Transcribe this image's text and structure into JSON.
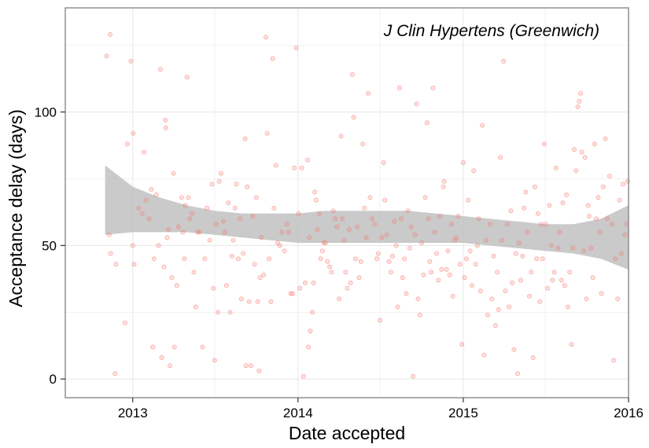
{
  "chart_data": {
    "type": "scatter",
    "title": "J Clin Hypertens (Greenwich)",
    "xlabel": "Date accepted",
    "ylabel": "Acceptance delay (days)",
    "xlim": [
      "2012-08-05",
      "2016-01-01"
    ],
    "ylim": [
      -7,
      139
    ],
    "x_ticks": [
      "2013",
      "2014",
      "2015",
      "2016"
    ],
    "x_tick_dates": [
      "2013-01-01",
      "2014-01-01",
      "2015-01-01",
      "2016-01-01"
    ],
    "y_ticks": [
      0,
      50,
      100
    ],
    "grid": true,
    "colors": {
      "points": "#f8766d",
      "band": "#bdbdbd",
      "grid": "#ebebeb",
      "frame": "#7f7f7f"
    },
    "points": [
      [
        "2012-11-04",
        121
      ],
      [
        "2012-11-12",
        129
      ],
      [
        "2012-11-10",
        54
      ],
      [
        "2012-11-13",
        47
      ],
      [
        "2012-11-25",
        43
      ],
      [
        "2012-11-23",
        2
      ],
      [
        "2012-12-15",
        21
      ],
      [
        "2012-12-20",
        88
      ],
      [
        "2012-12-28",
        119
      ],
      [
        "2013-01-02",
        92
      ],
      [
        "2013-01-01",
        50
      ],
      [
        "2013-01-04",
        43
      ],
      [
        "2013-01-14",
        64
      ],
      [
        "2013-01-22",
        62
      ],
      [
        "2013-01-26",
        85
      ],
      [
        "2013-01-30",
        67
      ],
      [
        "2013-02-06",
        60
      ],
      [
        "2013-02-11",
        71
      ],
      [
        "2013-02-14",
        12
      ],
      [
        "2013-02-17",
        45
      ],
      [
        "2013-02-22",
        69
      ],
      [
        "2013-02-27",
        50
      ],
      [
        "2013-03-03",
        116
      ],
      [
        "2013-03-06",
        8
      ],
      [
        "2013-03-11",
        42
      ],
      [
        "2013-03-14",
        97
      ],
      [
        "2013-03-15",
        94
      ],
      [
        "2013-03-18",
        53
      ],
      [
        "2013-03-21",
        56
      ],
      [
        "2013-03-24",
        5
      ],
      [
        "2013-03-28",
        38
      ],
      [
        "2013-04-01",
        77
      ],
      [
        "2013-04-03",
        12
      ],
      [
        "2013-04-08",
        35
      ],
      [
        "2013-04-12",
        57
      ],
      [
        "2013-04-19",
        68
      ],
      [
        "2013-04-22",
        55
      ],
      [
        "2013-04-25",
        45
      ],
      [
        "2013-04-27",
        65
      ],
      [
        "2013-05-01",
        113
      ],
      [
        "2013-05-04",
        68
      ],
      [
        "2013-05-07",
        60
      ],
      [
        "2013-05-12",
        62
      ],
      [
        "2013-05-16",
        40
      ],
      [
        "2013-05-20",
        27
      ],
      [
        "2013-05-24",
        55
      ],
      [
        "2013-05-28",
        55
      ],
      [
        "2013-06-04",
        12
      ],
      [
        "2013-06-09",
        45
      ],
      [
        "2013-06-14",
        64
      ],
      [
        "2013-06-20",
        52
      ],
      [
        "2013-06-25",
        73
      ],
      [
        "2013-06-28",
        34
      ],
      [
        "2013-07-01",
        7
      ],
      [
        "2013-07-04",
        58
      ],
      [
        "2013-07-08",
        25
      ],
      [
        "2013-07-11",
        74
      ],
      [
        "2013-07-15",
        77
      ],
      [
        "2013-07-20",
        59
      ],
      [
        "2013-07-23",
        55
      ],
      [
        "2013-07-27",
        35
      ],
      [
        "2013-07-31",
        66
      ],
      [
        "2013-08-04",
        25
      ],
      [
        "2013-08-08",
        46
      ],
      [
        "2013-08-11",
        52
      ],
      [
        "2013-08-15",
        64
      ],
      [
        "2013-08-18",
        73
      ],
      [
        "2013-08-22",
        45
      ],
      [
        "2013-08-26",
        60
      ],
      [
        "2013-08-29",
        30
      ],
      [
        "2013-09-02",
        47
      ],
      [
        "2013-09-06",
        90
      ],
      [
        "2013-09-08",
        5
      ],
      [
        "2013-09-11",
        72
      ],
      [
        "2013-09-15",
        29
      ],
      [
        "2013-09-19",
        5
      ],
      [
        "2013-09-23",
        61
      ],
      [
        "2013-09-27",
        43
      ],
      [
        "2013-10-01",
        68
      ],
      [
        "2013-10-04",
        29
      ],
      [
        "2013-10-07",
        3
      ],
      [
        "2013-10-09",
        38
      ],
      [
        "2013-10-12",
        53
      ],
      [
        "2013-10-17",
        39
      ],
      [
        "2013-10-22",
        128
      ],
      [
        "2013-10-25",
        92
      ],
      [
        "2013-10-29",
        45
      ],
      [
        "2013-11-02",
        29
      ],
      [
        "2013-11-06",
        120
      ],
      [
        "2013-11-09",
        64
      ],
      [
        "2013-11-13",
        80
      ],
      [
        "2013-11-17",
        51
      ],
      [
        "2013-11-22",
        50
      ],
      [
        "2013-11-26",
        55
      ],
      [
        "2013-12-02",
        48
      ],
      [
        "2013-12-07",
        58
      ],
      [
        "2013-12-11",
        55
      ],
      [
        "2013-12-16",
        32
      ],
      [
        "2013-12-20",
        32
      ],
      [
        "2013-12-24",
        79
      ],
      [
        "2013-12-28",
        124
      ],
      [
        "2014-01-02",
        62
      ],
      [
        "2014-01-05",
        34
      ],
      [
        "2014-01-09",
        79
      ],
      [
        "2014-01-13",
        1
      ],
      [
        "2014-01-17",
        36
      ],
      [
        "2014-01-22",
        82
      ],
      [
        "2014-01-24",
        12
      ],
      [
        "2014-01-26",
        53
      ],
      [
        "2014-01-28",
        18
      ],
      [
        "2014-02-02",
        25
      ],
      [
        "2014-02-04",
        36
      ],
      [
        "2014-02-07",
        70
      ],
      [
        "2014-02-10",
        67
      ],
      [
        "2014-02-13",
        56
      ],
      [
        "2014-02-17",
        62
      ],
      [
        "2014-02-20",
        45
      ],
      [
        "2014-02-24",
        48
      ],
      [
        "2014-02-27",
        51
      ],
      [
        "2014-03-03",
        51
      ],
      [
        "2014-03-07",
        44
      ],
      [
        "2014-03-12",
        42
      ],
      [
        "2014-03-16",
        40
      ],
      [
        "2014-03-20",
        63
      ],
      [
        "2014-03-24",
        60
      ],
      [
        "2014-03-28",
        57
      ],
      [
        "2014-04-02",
        30
      ],
      [
        "2014-04-06",
        91
      ],
      [
        "2014-04-09",
        60
      ],
      [
        "2014-04-13",
        52
      ],
      [
        "2014-04-16",
        40
      ],
      [
        "2014-04-20",
        34
      ],
      [
        "2014-04-24",
        56
      ],
      [
        "2014-04-27",
        36
      ],
      [
        "2014-05-01",
        114
      ],
      [
        "2014-05-04",
        98
      ],
      [
        "2014-05-08",
        45
      ],
      [
        "2014-05-12",
        57
      ],
      [
        "2014-05-16",
        38
      ],
      [
        "2014-05-20",
        44
      ],
      [
        "2014-05-24",
        88
      ],
      [
        "2014-05-28",
        64
      ],
      [
        "2014-06-01",
        53
      ],
      [
        "2014-06-05",
        107
      ],
      [
        "2014-06-09",
        68
      ],
      [
        "2014-06-14",
        60
      ],
      [
        "2014-06-19",
        58
      ],
      [
        "2014-06-24",
        45
      ],
      [
        "2014-06-27",
        47
      ],
      [
        "2014-07-01",
        22
      ],
      [
        "2014-07-05",
        53
      ],
      [
        "2014-07-09",
        81
      ],
      [
        "2014-07-12",
        67
      ],
      [
        "2014-07-16",
        54
      ],
      [
        "2014-07-21",
        44
      ],
      [
        "2014-07-25",
        40
      ],
      [
        "2014-07-29",
        46
      ],
      [
        "2014-08-02",
        59
      ],
      [
        "2014-08-06",
        50
      ],
      [
        "2014-08-09",
        27
      ],
      [
        "2014-08-13",
        109
      ],
      [
        "2014-08-17",
        60
      ],
      [
        "2014-08-20",
        38
      ],
      [
        "2014-08-24",
        45
      ],
      [
        "2014-08-28",
        32
      ],
      [
        "2014-09-01",
        63
      ],
      [
        "2014-09-05",
        49
      ],
      [
        "2014-09-08",
        57
      ],
      [
        "2014-09-12",
        1
      ],
      [
        "2014-09-16",
        54
      ],
      [
        "2014-09-20",
        103
      ],
      [
        "2014-09-23",
        30
      ],
      [
        "2014-09-27",
        24
      ],
      [
        "2014-10-01",
        51
      ],
      [
        "2014-10-05",
        39
      ],
      [
        "2014-10-09",
        68
      ],
      [
        "2014-10-13",
        96
      ],
      [
        "2014-10-16",
        60
      ],
      [
        "2014-10-19",
        44
      ],
      [
        "2014-10-22",
        40
      ],
      [
        "2014-10-26",
        109
      ],
      [
        "2014-10-30",
        55
      ],
      [
        "2014-11-03",
        47
      ],
      [
        "2014-11-07",
        37
      ],
      [
        "2014-11-10",
        61
      ],
      [
        "2014-11-14",
        41
      ],
      [
        "2014-11-18",
        72
      ],
      [
        "2014-11-20",
        74
      ],
      [
        "2014-11-25",
        41
      ],
      [
        "2014-11-28",
        48
      ],
      [
        "2014-12-02",
        39
      ],
      [
        "2014-12-06",
        58
      ],
      [
        "2014-12-09",
        31
      ],
      [
        "2014-12-13",
        52
      ],
      [
        "2014-12-17",
        53
      ],
      [
        "2014-12-21",
        61
      ],
      [
        "2014-12-25",
        43
      ],
      [
        "2014-12-29",
        13
      ],
      [
        "2015-01-01",
        81
      ],
      [
        "2015-01-04",
        38
      ],
      [
        "2015-01-08",
        45
      ],
      [
        "2015-01-12",
        67
      ],
      [
        "2015-01-16",
        48
      ],
      [
        "2015-01-20",
        35
      ],
      [
        "2015-01-24",
        78
      ],
      [
        "2015-01-28",
        43
      ],
      [
        "2015-02-01",
        50
      ],
      [
        "2015-02-04",
        60
      ],
      [
        "2015-02-08",
        33
      ],
      [
        "2015-02-12",
        95
      ],
      [
        "2015-02-16",
        9
      ],
      [
        "2015-02-20",
        52
      ],
      [
        "2015-02-24",
        24
      ],
      [
        "2015-03-01",
        58
      ],
      [
        "2015-03-05",
        30
      ],
      [
        "2015-03-09",
        46
      ],
      [
        "2015-03-13",
        20
      ],
      [
        "2015-03-17",
        40
      ],
      [
        "2015-03-20",
        26
      ],
      [
        "2015-03-24",
        83
      ],
      [
        "2015-03-27",
        52
      ],
      [
        "2015-03-31",
        119
      ],
      [
        "2015-04-04",
        33
      ],
      [
        "2015-04-08",
        58
      ],
      [
        "2015-04-12",
        27
      ],
      [
        "2015-04-16",
        63
      ],
      [
        "2015-04-19",
        36
      ],
      [
        "2015-04-23",
        11
      ],
      [
        "2015-04-27",
        47
      ],
      [
        "2015-05-01",
        2
      ],
      [
        "2015-05-04",
        51
      ],
      [
        "2015-05-08",
        37
      ],
      [
        "2015-05-12",
        46
      ],
      [
        "2015-05-15",
        64
      ],
      [
        "2015-05-19",
        70
      ],
      [
        "2015-05-23",
        55
      ],
      [
        "2015-05-27",
        31
      ],
      [
        "2015-05-31",
        40
      ],
      [
        "2015-06-04",
        8
      ],
      [
        "2015-06-08",
        72
      ],
      [
        "2015-06-12",
        45
      ],
      [
        "2015-06-15",
        62
      ],
      [
        "2015-06-19",
        29
      ],
      [
        "2015-06-22",
        58
      ],
      [
        "2015-06-25",
        45
      ],
      [
        "2015-06-29",
        88
      ],
      [
        "2015-07-02",
        58
      ],
      [
        "2015-07-06",
        34
      ],
      [
        "2015-07-10",
        65
      ],
      [
        "2015-07-14",
        50
      ],
      [
        "2015-07-17",
        37
      ],
      [
        "2015-07-21",
        40
      ],
      [
        "2015-07-25",
        79
      ],
      [
        "2015-07-29",
        49
      ],
      [
        "2015-08-02",
        55
      ],
      [
        "2015-08-06",
        37
      ],
      [
        "2015-08-09",
        66
      ],
      [
        "2015-08-13",
        35
      ],
      [
        "2015-08-17",
        69
      ],
      [
        "2015-08-20",
        27
      ],
      [
        "2015-08-24",
        40
      ],
      [
        "2015-08-28",
        13
      ],
      [
        "2015-08-31",
        49
      ],
      [
        "2015-09-03",
        86
      ],
      [
        "2015-09-07",
        78
      ],
      [
        "2015-09-11",
        102
      ],
      [
        "2015-09-14",
        104
      ],
      [
        "2015-09-17",
        107
      ],
      [
        "2015-09-20",
        85
      ],
      [
        "2015-09-24",
        48
      ],
      [
        "2015-09-27",
        83
      ],
      [
        "2015-09-30",
        30
      ],
      [
        "2015-10-04",
        65
      ],
      [
        "2015-10-06",
        61
      ],
      [
        "2015-10-10",
        49
      ],
      [
        "2015-10-14",
        38
      ],
      [
        "2015-10-18",
        88
      ],
      [
        "2015-10-22",
        60
      ],
      [
        "2015-10-26",
        68
      ],
      [
        "2015-10-30",
        55
      ],
      [
        "2015-11-02",
        32
      ],
      [
        "2015-11-06",
        72
      ],
      [
        "2015-11-11",
        90
      ],
      [
        "2015-11-15",
        60
      ],
      [
        "2015-11-20",
        76
      ],
      [
        "2015-11-25",
        58
      ],
      [
        "2015-11-29",
        7
      ],
      [
        "2015-12-03",
        45
      ],
      [
        "2015-12-08",
        30
      ],
      [
        "2015-12-12",
        67
      ],
      [
        "2015-12-16",
        47
      ],
      [
        "2015-12-20",
        73
      ],
      [
        "2015-12-24",
        54
      ],
      [
        "2015-12-28",
        58
      ],
      [
        "2015-12-30",
        74
      ]
    ],
    "band": {
      "x": [
        "2012-11-01",
        "2013-01-01",
        "2013-03-01",
        "2013-05-01",
        "2013-07-01",
        "2013-09-01",
        "2013-11-01",
        "2014-01-01",
        "2014-03-01",
        "2014-05-01",
        "2014-07-01",
        "2014-09-01",
        "2014-11-01",
        "2015-01-01",
        "2015-03-01",
        "2015-05-01",
        "2015-07-01",
        "2015-09-01",
        "2015-11-01",
        "2015-12-31"
      ],
      "upper": [
        80,
        72,
        68,
        65,
        63,
        62,
        62,
        62,
        63,
        63,
        63,
        63,
        62,
        61,
        60,
        59,
        58,
        58,
        60,
        65
      ],
      "lower": [
        54,
        55,
        55,
        55,
        54,
        53,
        52,
        51,
        51,
        51,
        51,
        51,
        51,
        51,
        50,
        49,
        48,
        47,
        45,
        41
      ]
    }
  }
}
